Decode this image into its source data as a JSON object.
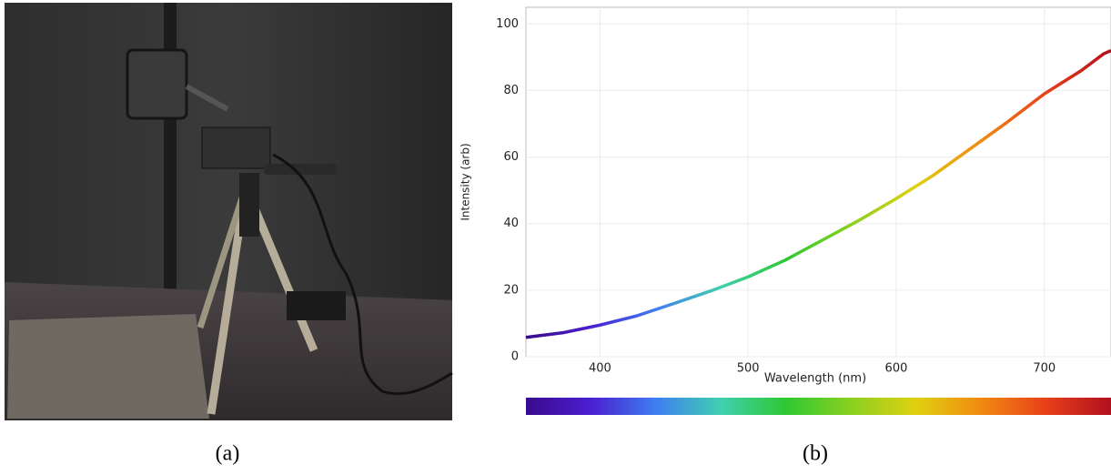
{
  "chart_data": {
    "type": "line",
    "x_label": "Wavelength (nm)",
    "y_label": "Intensity (arb)",
    "x": [
      350,
      375,
      400,
      425,
      450,
      475,
      500,
      525,
      550,
      575,
      600,
      625,
      650,
      675,
      700,
      725,
      740,
      745
    ],
    "values": [
      5.8,
      7.2,
      9.5,
      12.3,
      16,
      19.8,
      24,
      29,
      35,
      41,
      47.5,
      54.5,
      62.5,
      70.5,
      79,
      86,
      91,
      92
    ],
    "xlim": [
      350,
      745
    ],
    "ylim": [
      0,
      105
    ],
    "xticks": [
      400,
      500,
      600,
      700
    ],
    "yticks": [
      0,
      20,
      40,
      60,
      80,
      100
    ],
    "grid": true,
    "colormap": [
      "#3a0a8c",
      "#4a1fd0",
      "#3f7ef0",
      "#3fd0b0",
      "#2ec832",
      "#8ad020",
      "#e0d010",
      "#f08a10",
      "#e8401a",
      "#b0101e"
    ]
  },
  "captions": [
    "(a)",
    "(b)"
  ]
}
